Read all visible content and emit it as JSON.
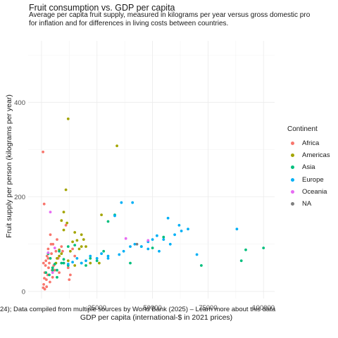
{
  "chart_data": {
    "type": "scatter",
    "title": "Fruit consumption vs. GDP per capita",
    "subtitle": [
      "Average per capita fruit supply, measured in kilograms per year versus gross domestic pro",
      "for inflation and for differences in living costs between countries."
    ],
    "xlabel": "GDP per capita (international-$ in 2021 prices)",
    "ylabel": "Fruit supply per person (kilograms per year)",
    "caption": "24); Data compiled from multiple sources by World Bank (2025) – Learn more about this data",
    "xlim": [
      -6000,
      105000
    ],
    "ylim": [
      -15,
      530
    ],
    "x_ticks": [
      25000,
      50000,
      75000,
      100000
    ],
    "x_tick_labels": [
      "25000",
      "50000",
      "75000",
      "100000"
    ],
    "y_ticks": [
      0,
      200,
      400
    ],
    "y_tick_labels": [
      "0",
      "200",
      "400"
    ],
    "grid": true,
    "legend_position": "right",
    "legend_title": "Continent",
    "colors": {
      "Africa": "#F8766D",
      "Americas": "#A3A500",
      "Asia": "#00BF7D",
      "Europe": "#00B0F6",
      "Oceania": "#E76BF3",
      "NA": "#7F7F7F"
    },
    "series": [
      {
        "name": "Africa",
        "points": [
          [
            700,
            295
          ],
          [
            1200,
            185
          ],
          [
            800,
            8
          ],
          [
            1000,
            15
          ],
          [
            1300,
            28
          ],
          [
            1500,
            40
          ],
          [
            1800,
            55
          ],
          [
            2000,
            65
          ],
          [
            2200,
            25
          ],
          [
            2500,
            75
          ],
          [
            2800,
            35
          ],
          [
            3000,
            90
          ],
          [
            3200,
            50
          ],
          [
            3500,
            60
          ],
          [
            4000,
            120
          ],
          [
            4300,
            100
          ],
          [
            4500,
            80
          ],
          [
            5000,
            30
          ],
          [
            5500,
            55
          ],
          [
            6000,
            45
          ],
          [
            6500,
            85
          ],
          [
            7000,
            110
          ],
          [
            7500,
            70
          ],
          [
            8000,
            40
          ],
          [
            9000,
            95
          ],
          [
            10000,
            60
          ],
          [
            11000,
            140
          ],
          [
            12000,
            50
          ],
          [
            13000,
            35
          ],
          [
            14000,
            90
          ],
          [
            15000,
            75
          ],
          [
            1500,
            5
          ],
          [
            2300,
            10
          ],
          [
            3800,
            20
          ],
          [
            4800,
            45
          ],
          [
            12500,
            25
          ],
          [
            9500,
            85
          ],
          [
            3000,
            70
          ],
          [
            5200,
            100
          ],
          [
            900,
            60
          ]
        ]
      },
      {
        "name": "Americas",
        "points": [
          [
            12000,
            365
          ],
          [
            34000,
            308
          ],
          [
            11000,
            215
          ],
          [
            10000,
            168
          ],
          [
            9000,
            150
          ],
          [
            11500,
            145
          ],
          [
            10000,
            130
          ],
          [
            15000,
            125
          ],
          [
            18000,
            120
          ],
          [
            19000,
            110
          ],
          [
            16000,
            108
          ],
          [
            14000,
            105
          ],
          [
            20000,
            95
          ],
          [
            17000,
            90
          ],
          [
            13000,
            85
          ],
          [
            9000,
            80
          ],
          [
            8000,
            75
          ],
          [
            7000,
            70
          ],
          [
            6500,
            60
          ],
          [
            15000,
            55
          ],
          [
            22000,
            60
          ],
          [
            27000,
            162
          ],
          [
            26000,
            60
          ],
          [
            8000,
            88
          ],
          [
            5000,
            50
          ],
          [
            18000,
            95
          ],
          [
            12000,
            65
          ]
        ]
      },
      {
        "name": "Asia",
        "points": [
          [
            100000,
            92
          ],
          [
            92000,
            88
          ],
          [
            90000,
            65
          ],
          [
            72000,
            55
          ],
          [
            55000,
            115
          ],
          [
            45000,
            95
          ],
          [
            50000,
            92
          ],
          [
            40000,
            60
          ],
          [
            33000,
            162
          ],
          [
            30000,
            148
          ],
          [
            28000,
            85
          ],
          [
            20000,
            55
          ],
          [
            18000,
            60
          ],
          [
            15000,
            98
          ],
          [
            12000,
            95
          ],
          [
            10000,
            60
          ],
          [
            8000,
            85
          ],
          [
            6000,
            58
          ],
          [
            5000,
            50
          ],
          [
            4000,
            70
          ],
          [
            3000,
            80
          ],
          [
            2000,
            40
          ],
          [
            3500,
            35
          ],
          [
            7000,
            45
          ],
          [
            22000,
            70
          ],
          [
            25000,
            65
          ],
          [
            12000,
            55
          ],
          [
            10000,
            68
          ],
          [
            5000,
            45
          ],
          [
            7000,
            30
          ],
          [
            9000,
            60
          ]
        ]
      },
      {
        "name": "Europe",
        "points": [
          [
            41000,
            188
          ],
          [
            36000,
            188
          ],
          [
            33000,
            160
          ],
          [
            57000,
            155
          ],
          [
            62000,
            140
          ],
          [
            66000,
            132
          ],
          [
            63000,
            128
          ],
          [
            60000,
            120
          ],
          [
            52000,
            118
          ],
          [
            50000,
            110
          ],
          [
            48000,
            105
          ],
          [
            55000,
            110
          ],
          [
            58000,
            100
          ],
          [
            45000,
            95
          ],
          [
            42000,
            100
          ],
          [
            40000,
            95
          ],
          [
            37000,
            85
          ],
          [
            35000,
            78
          ],
          [
            30000,
            75
          ],
          [
            27000,
            80
          ],
          [
            25000,
            70
          ],
          [
            22000,
            75
          ],
          [
            20000,
            65
          ],
          [
            18000,
            60
          ],
          [
            16000,
            70
          ],
          [
            14000,
            62
          ],
          [
            12000,
            58
          ],
          [
            30000,
            70
          ],
          [
            48000,
            90
          ],
          [
            70000,
            78
          ],
          [
            88000,
            132
          ],
          [
            53000,
            85
          ]
        ]
      },
      {
        "name": "Oceania",
        "points": [
          [
            4000,
            168
          ],
          [
            38000,
            112
          ],
          [
            48000,
            108
          ],
          [
            6000,
            92
          ],
          [
            3000,
            82
          ],
          [
            5000,
            40
          ]
        ]
      },
      {
        "name": "NA",
        "points": [
          [
            43000,
            100
          ]
        ]
      }
    ]
  }
}
